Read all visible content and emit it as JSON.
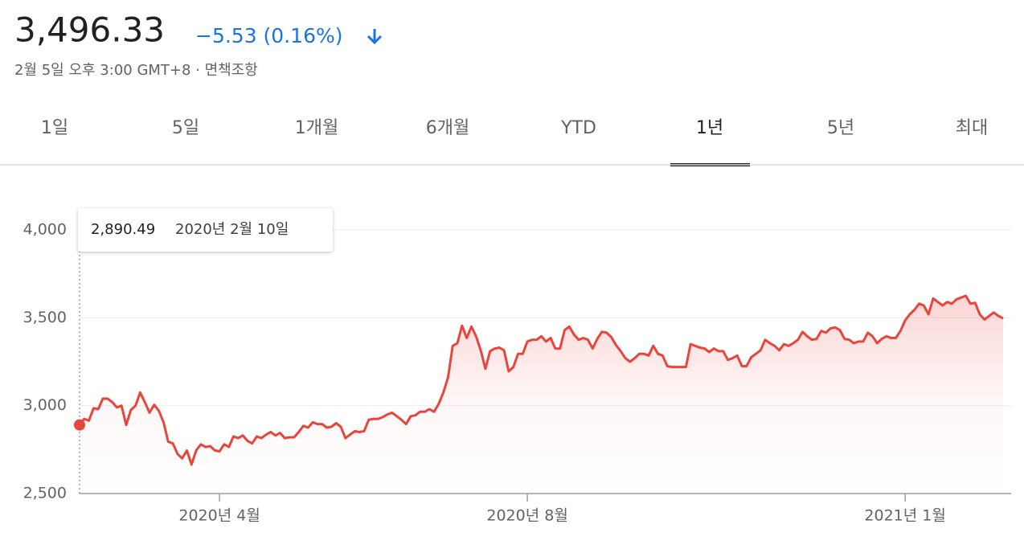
{
  "header": {
    "price": "3,496.33",
    "change": "−5.53 (0.16%)",
    "subtitle": "2월 5일 오후 3:00 GMT+8 · 면책조항"
  },
  "tabs": {
    "items": [
      "1일",
      "5일",
      "1개월",
      "6개월",
      "YTD",
      "1년",
      "5년",
      "최대"
    ],
    "selected": 5
  },
  "chart_data": {
    "type": "line",
    "color": "#e8453c",
    "tooltip": {
      "value_label": "2,890.49",
      "date": "2020년 2월 10일"
    },
    "values": [
      2890.49,
      2925,
      2915,
      2985,
      2980,
      3040,
      3040,
      3020,
      2990,
      3000,
      2890,
      2975,
      3000,
      3075,
      3020,
      2960,
      3005,
      2970,
      2905,
      2795,
      2785,
      2725,
      2700,
      2745,
      2665,
      2745,
      2780,
      2765,
      2770,
      2745,
      2740,
      2780,
      2765,
      2825,
      2815,
      2830,
      2800,
      2785,
      2825,
      2815,
      2835,
      2850,
      2830,
      2845,
      2815,
      2820,
      2820,
      2850,
      2885,
      2875,
      2905,
      2895,
      2895,
      2875,
      2880,
      2900,
      2880,
      2815,
      2835,
      2855,
      2850,
      2855,
      2920,
      2925,
      2925,
      2935,
      2950,
      2960,
      2940,
      2920,
      2895,
      2940,
      2945,
      2965,
      2965,
      2980,
      2965,
      3010,
      3075,
      3160,
      3340,
      3355,
      3455,
      3385,
      3450,
      3395,
      3315,
      3210,
      3310,
      3325,
      3330,
      3315,
      3195,
      3220,
      3295,
      3295,
      3365,
      3375,
      3375,
      3395,
      3365,
      3385,
      3325,
      3325,
      3430,
      3450,
      3405,
      3375,
      3385,
      3375,
      3325,
      3380,
      3420,
      3415,
      3390,
      3345,
      3310,
      3270,
      3250,
      3270,
      3295,
      3295,
      3285,
      3340,
      3295,
      3285,
      3225,
      3220,
      3220,
      3220,
      3220,
      3350,
      3340,
      3330,
      3325,
      3305,
      3325,
      3310,
      3310,
      3260,
      3270,
      3285,
      3225,
      3225,
      3275,
      3295,
      3315,
      3375,
      3355,
      3340,
      3315,
      3350,
      3340,
      3355,
      3375,
      3420,
      3395,
      3375,
      3380,
      3425,
      3415,
      3440,
      3445,
      3430,
      3380,
      3375,
      3355,
      3365,
      3365,
      3415,
      3395,
      3355,
      3380,
      3395,
      3385,
      3385,
      3425,
      3485,
      3520,
      3545,
      3580,
      3570,
      3520,
      3610,
      3590,
      3570,
      3590,
      3580,
      3605,
      3615,
      3625,
      3580,
      3585,
      3520,
      3490,
      3510,
      3530,
      3510,
      3496.33
    ],
    "xlim": [
      0,
      198
    ],
    "xticks": [
      {
        "value": 30,
        "label": "2020년 4월"
      },
      {
        "value": 96,
        "label": "2020년 8월"
      },
      {
        "value": 177,
        "label": "2021년 1월"
      }
    ],
    "ylim": [
      2500,
      4000
    ],
    "yticks": [
      {
        "value": 2500,
        "label": "2,500"
      },
      {
        "value": 3000,
        "label": "3,000"
      },
      {
        "value": 3500,
        "label": "3,500"
      },
      {
        "value": 4000,
        "label": "4,000"
      }
    ],
    "grid": true
  }
}
